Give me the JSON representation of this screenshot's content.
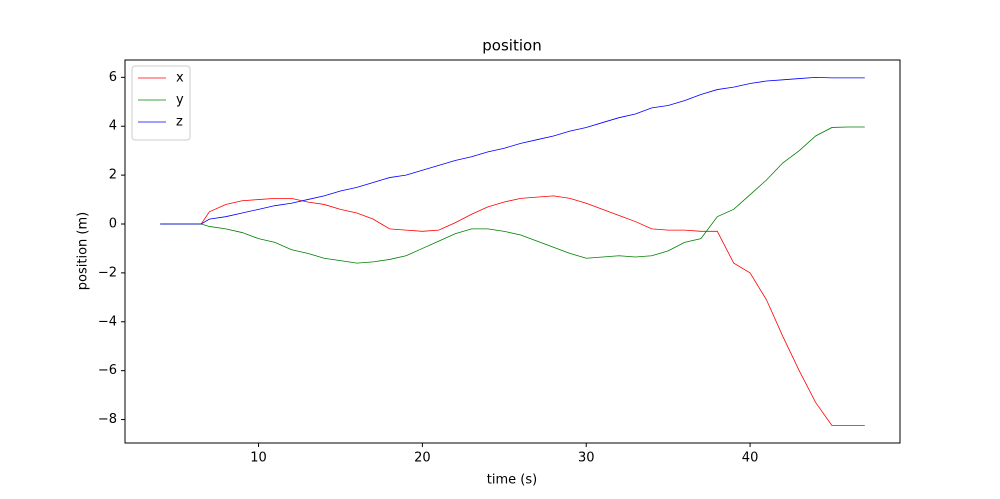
{
  "chart_data": {
    "type": "line",
    "title": "position",
    "x_label": "time (s)",
    "y_label": "position (m)",
    "x": [
      4,
      5,
      6,
      6.5,
      7,
      8,
      9,
      10,
      11,
      12,
      13,
      14,
      15,
      16,
      17,
      18,
      19,
      20,
      21,
      22,
      23,
      24,
      25,
      26,
      27,
      28,
      29,
      30,
      31,
      32,
      33,
      34,
      35,
      36,
      37,
      38,
      39,
      40,
      41,
      42,
      43,
      44,
      45,
      46,
      47
    ],
    "series": [
      {
        "name": "x",
        "color": "#ff0000",
        "values": [
          0,
          0,
          0,
          0,
          0.5,
          0.8,
          0.95,
          1.0,
          1.05,
          1.05,
          0.9,
          0.8,
          0.6,
          0.45,
          0.2,
          -0.2,
          -0.25,
          -0.3,
          -0.25,
          0.05,
          0.4,
          0.7,
          0.9,
          1.05,
          1.1,
          1.15,
          1.05,
          0.85,
          0.6,
          0.35,
          0.1,
          -0.2,
          -0.25,
          -0.25,
          -0.3,
          -0.3,
          -1.6,
          -2.0,
          -3.1,
          -4.6,
          -6.0,
          -7.3,
          -8.25,
          -8.25,
          -8.25
        ]
      },
      {
        "name": "y",
        "color": "#008000",
        "values": [
          0,
          0,
          0,
          0,
          -0.1,
          -0.2,
          -0.35,
          -0.6,
          -0.75,
          -1.05,
          -1.2,
          -1.4,
          -1.5,
          -1.6,
          -1.55,
          -1.45,
          -1.3,
          -1.0,
          -0.7,
          -0.4,
          -0.2,
          -0.2,
          -0.3,
          -0.45,
          -0.7,
          -0.95,
          -1.2,
          -1.4,
          -1.35,
          -1.3,
          -1.35,
          -1.3,
          -1.1,
          -0.75,
          -0.6,
          0.3,
          0.6,
          1.2,
          1.8,
          2.5,
          3.0,
          3.6,
          3.95,
          3.97,
          3.97
        ]
      },
      {
        "name": "z",
        "color": "#0000ff",
        "values": [
          0,
          0,
          0,
          0,
          0.2,
          0.3,
          0.45,
          0.6,
          0.75,
          0.85,
          1.0,
          1.15,
          1.35,
          1.5,
          1.7,
          1.9,
          2.0,
          2.2,
          2.4,
          2.6,
          2.75,
          2.95,
          3.1,
          3.3,
          3.45,
          3.6,
          3.8,
          3.95,
          4.15,
          4.35,
          4.5,
          4.75,
          4.85,
          5.05,
          5.3,
          5.5,
          5.6,
          5.75,
          5.85,
          5.9,
          5.95,
          6.0,
          5.98,
          5.98,
          5.98
        ]
      }
    ],
    "xlim": [
      1.85,
      49.15
    ],
    "ylim": [
      -8.96,
      6.71
    ],
    "xticks": [
      10,
      20,
      30,
      40
    ],
    "yticks": [
      {
        "value": -8,
        "label": "−8"
      },
      {
        "value": -6,
        "label": "−6"
      },
      {
        "value": -4,
        "label": "−4"
      },
      {
        "value": -2,
        "label": "−2"
      },
      0,
      2,
      4,
      6
    ],
    "legend": "upper left",
    "grid": false
  }
}
